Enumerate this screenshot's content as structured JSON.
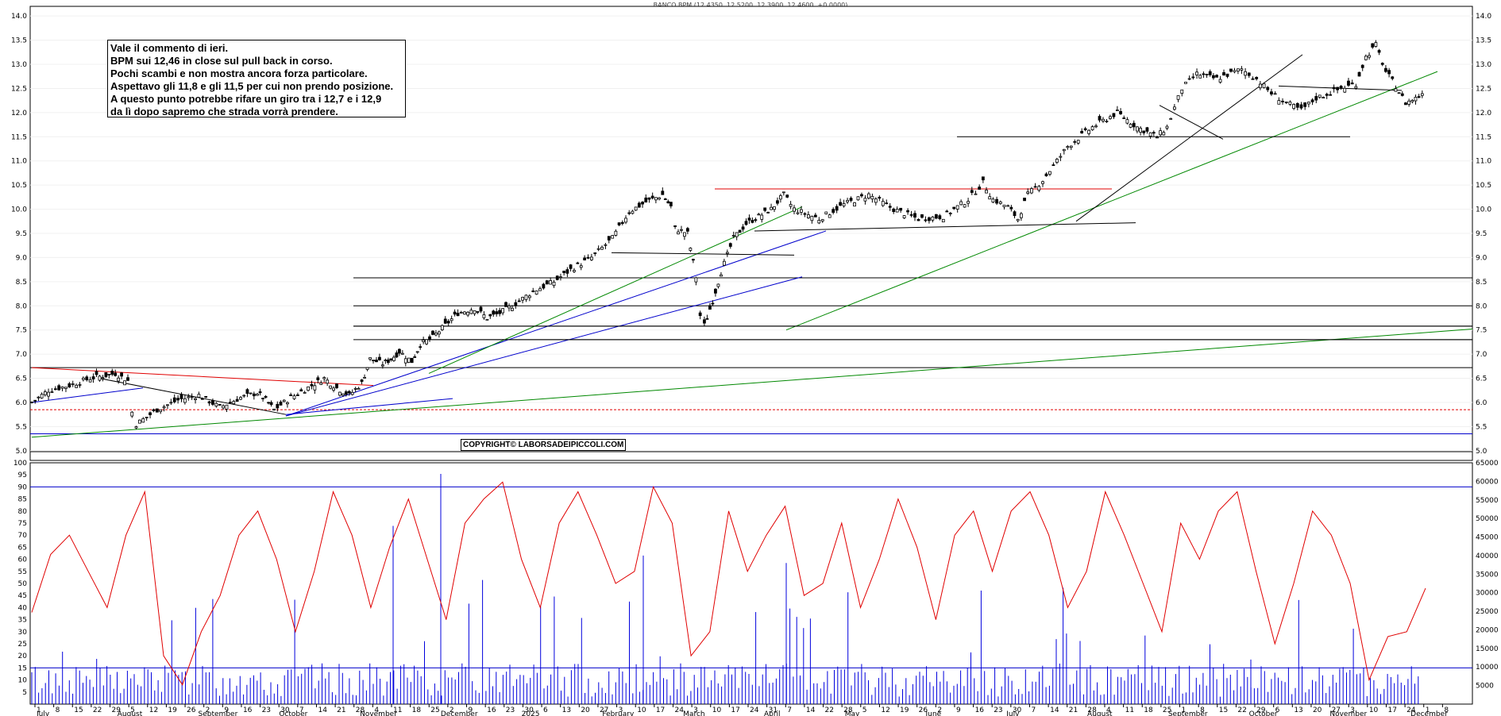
{
  "chart_data": [
    {
      "type": "candlestick",
      "title": "BANCO BPM (12.4350, 12.5200, 12.3900, 12.4600, +0.0000)",
      "ylim": [
        4.8,
        14.2
      ],
      "y_ticks": [
        "5.0",
        "5.5",
        "6.0",
        "6.5",
        "7.0",
        "7.5",
        "8.0",
        "8.5",
        "9.0",
        "9.5",
        "10.0",
        "10.5",
        "11.0",
        "11.5",
        "12.0",
        "12.5",
        "13.0",
        "13.5",
        "14.0"
      ],
      "y_tick_values": [
        5.0,
        5.5,
        6.0,
        6.5,
        7.0,
        7.5,
        8.0,
        8.5,
        9.0,
        9.5,
        10.0,
        10.5,
        11.0,
        11.5,
        12.0,
        12.5,
        13.0,
        13.5,
        14.0
      ],
      "x_range": [
        0,
        365
      ],
      "close_path": [
        [
          0,
          6.0
        ],
        [
          8,
          6.25
        ],
        [
          18,
          6.35
        ],
        [
          28,
          6.5
        ],
        [
          40,
          6.6
        ],
        [
          46,
          6.45
        ],
        [
          48,
          5.8
        ],
        [
          50,
          5.55
        ],
        [
          60,
          5.85
        ],
        [
          70,
          6.05
        ],
        [
          80,
          6.15
        ],
        [
          90,
          5.9
        ],
        [
          100,
          6.1
        ],
        [
          108,
          6.2
        ],
        [
          112,
          6.05
        ],
        [
          116,
          5.85
        ],
        [
          124,
          6.1
        ],
        [
          134,
          6.35
        ],
        [
          140,
          6.5
        ],
        [
          146,
          6.3
        ],
        [
          152,
          6.15
        ],
        [
          158,
          6.4
        ],
        [
          162,
          6.9
        ],
        [
          168,
          6.8
        ],
        [
          172,
          6.9
        ],
        [
          176,
          7.05
        ],
        [
          182,
          6.85
        ],
        [
          186,
          7.2
        ],
        [
          192,
          7.35
        ],
        [
          198,
          7.6
        ],
        [
          204,
          7.85
        ],
        [
          212,
          7.95
        ],
        [
          218,
          7.75
        ],
        [
          224,
          7.85
        ],
        [
          230,
          8.0
        ],
        [
          240,
          8.3
        ],
        [
          250,
          8.5
        ],
        [
          258,
          8.75
        ],
        [
          268,
          9.0
        ],
        [
          278,
          9.4
        ],
        [
          286,
          9.95
        ],
        [
          294,
          10.15
        ],
        [
          302,
          10.3
        ],
        [
          306,
          10.05
        ],
        [
          308,
          9.6
        ],
        [
          314,
          9.5
        ],
        [
          318,
          8.6
        ],
        [
          320,
          7.8
        ],
        [
          322,
          7.6
        ],
        [
          326,
          8.1
        ],
        [
          330,
          8.7
        ],
        [
          336,
          9.4
        ],
        [
          342,
          9.7
        ],
        [
          348,
          9.85
        ],
        [
          354,
          10.0
        ],
        [
          360,
          10.3
        ],
        [
          365,
          10.0
        ]
      ],
      "close_path_2": [
        [
          0,
          10.0
        ],
        [
          10,
          9.8
        ],
        [
          20,
          10.1
        ],
        [
          30,
          10.3
        ],
        [
          40,
          10.0
        ],
        [
          50,
          9.8
        ],
        [
          60,
          9.85
        ],
        [
          70,
          10.2
        ],
        [
          76,
          10.55
        ],
        [
          80,
          10.2
        ],
        [
          86,
          10.05
        ],
        [
          90,
          9.8
        ],
        [
          94,
          10.3
        ],
        [
          100,
          10.6
        ],
        [
          110,
          11.3
        ],
        [
          120,
          11.7
        ],
        [
          130,
          12.0
        ],
        [
          138,
          11.7
        ],
        [
          146,
          11.5
        ],
        [
          150,
          11.7
        ],
        [
          156,
          12.5
        ],
        [
          162,
          12.8
        ],
        [
          170,
          12.7
        ],
        [
          180,
          12.9
        ],
        [
          186,
          12.7
        ],
        [
          192,
          12.4
        ],
        [
          198,
          12.2
        ],
        [
          204,
          12.05
        ],
        [
          210,
          12.3
        ],
        [
          220,
          12.5
        ],
        [
          226,
          12.6
        ],
        [
          230,
          13.15
        ],
        [
          234,
          13.4
        ],
        [
          238,
          12.85
        ],
        [
          242,
          12.55
        ],
        [
          246,
          12.2
        ],
        [
          250,
          12.3
        ],
        [
          254,
          12.46
        ]
      ],
      "last_close": 12.46,
      "levels": [
        7.58,
        8.0,
        8.58,
        7.3,
        6.72,
        5.35,
        5.85,
        4.98
      ],
      "x_day_labels": [
        "1",
        "8",
        "15",
        "22",
        "29",
        "5",
        "12",
        "19",
        "26",
        "2",
        "9",
        "16",
        "23",
        "30",
        "7",
        "14",
        "21",
        "28",
        "4",
        "11",
        "18",
        "25",
        "2",
        "9",
        "16",
        "23",
        "30",
        "6",
        "13",
        "20",
        "27",
        "3",
        "10",
        "17",
        "24",
        "3",
        "10",
        "17",
        "24",
        "31",
        "7",
        "14",
        "22",
        "28",
        "5",
        "12",
        "19",
        "26",
        "2",
        "9",
        "16",
        "23",
        "30",
        "7",
        "14",
        "21",
        "28",
        "4",
        "11",
        "18",
        "25",
        "1",
        "8",
        "15",
        "22",
        "29",
        "6",
        "13",
        "20",
        "27",
        "3",
        "10",
        "17",
        "24",
        "1",
        "8"
      ],
      "x_month_labels": [
        "July",
        "August",
        "September",
        "October",
        "November",
        "December",
        "2025",
        "February",
        "March",
        "April",
        "May",
        "June",
        "July",
        "August",
        "September",
        "October",
        "November",
        "December"
      ]
    },
    {
      "type": "line",
      "series": [
        {
          "values": [
            38,
            62,
            70,
            55,
            40,
            70,
            88,
            20,
            8,
            30,
            45,
            70,
            80,
            60,
            30,
            55,
            88,
            70,
            40,
            65,
            85,
            60,
            35,
            75,
            85,
            92,
            60,
            40,
            75,
            88,
            70,
            50,
            55,
            90,
            75,
            20,
            30,
            80,
            55,
            70,
            82,
            45,
            50,
            75,
            40,
            60,
            85,
            65,
            35,
            70,
            80,
            55,
            80,
            88,
            70,
            40,
            55,
            88,
            70,
            50,
            30,
            75,
            60,
            80,
            88,
            55,
            25,
            50,
            80,
            70,
            50,
            10,
            28,
            30,
            48
          ]
        }
      ],
      "ylim": [
        0,
        100
      ],
      "y_ticks": [
        "5",
        "10",
        "15",
        "20",
        "25",
        "30",
        "35",
        "40",
        "45",
        "50",
        "55",
        "60",
        "65",
        "70",
        "75",
        "80",
        "85",
        "90",
        "95",
        "100"
      ],
      "upper_level": 90,
      "lower_level": 15
    },
    {
      "type": "bar",
      "name": "volume",
      "ylim": [
        0,
        65000
      ],
      "y_ticks": [
        "5000",
        "10000",
        "15000",
        "20000",
        "25000",
        "30000",
        "35000",
        "40000",
        "45000",
        "50000",
        "55000",
        "60000",
        "65000"
      ]
    }
  ],
  "annotation": {
    "lines": [
      "Vale il commento di ieri.",
      "BPM sui 12,46 in close sul pull back in corso.",
      "Pochi scambi e non mostra ancora forza particolare.",
      "Aspettavo gli 11,8 e gli 11,5 per cui non prendo posizione.",
      "A questo punto potrebbe rifare un giro tra i 12,7 e i 12,9",
      "da lì dopo sapremo che strada vorrà prendere."
    ]
  },
  "copyright": "COPYRIGHT© LABORSADEIPICCOLI.COM",
  "colors": {
    "price": "#000000",
    "red": "#e00000",
    "green": "#008800",
    "blue": "#0000cc",
    "oscillator": "#e00000",
    "volume": "#0000dd"
  }
}
